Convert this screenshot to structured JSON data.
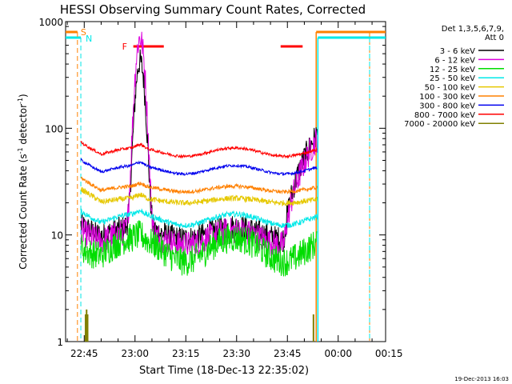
{
  "chart_data": {
    "type": "line",
    "title": "HESSI Observing Summary Count Rates, Corrected",
    "xlabel": "Start Time (18-Dec-13 22:35:02)",
    "ylabel_main": "Corrected Count Rate (s",
    "ylabel_sup1": "-1",
    "ylabel_mid": " detector",
    "ylabel_sup2": "-1",
    "ylabel_end": ")",
    "yscale": "log",
    "ylim": [
      1,
      1000
    ],
    "y_ticks": [
      {
        "value": 1,
        "label": "1"
      },
      {
        "value": 10,
        "label": "10"
      },
      {
        "value": 100,
        "label": "100"
      },
      {
        "value": 1000,
        "label": "1000"
      }
    ],
    "xlim_minutes": [
      -20.5,
      74
    ],
    "x_ticks": [
      {
        "value": -15,
        "label": "22:45"
      },
      {
        "value": 0,
        "label": "23:00"
      },
      {
        "value": 15,
        "label": "23:15"
      },
      {
        "value": 30,
        "label": "23:30"
      },
      {
        "value": 45,
        "label": "23:45"
      },
      {
        "value": 60,
        "label": "00:00"
      },
      {
        "value": 75,
        "label": "00:15"
      }
    ],
    "legend": {
      "header1": "Det 1,3,5,6,7,9,",
      "header2": "Att 0",
      "placement": "top-right outside"
    },
    "series": [
      {
        "name": "3 - 6 keV",
        "color": "#000000",
        "base": 10.5,
        "amp": 0.13,
        "noise": 0.28,
        "peak": 420
      },
      {
        "name": "6 - 12 keV",
        "color": "#dd00dd",
        "base": 9.5,
        "amp": 0.15,
        "noise": 0.3,
        "peak": 700
      },
      {
        "name": "12 - 25 keV",
        "color": "#00dd00",
        "base": 7.5,
        "amp": 0.25,
        "noise": 0.32,
        "peak": 12
      },
      {
        "name": "25 - 50 keV",
        "color": "#00e8e8",
        "base": 14,
        "amp": 0.12,
        "noise": 0.06,
        "peak": 22
      },
      {
        "name": "50 - 100 keV",
        "color": "#e6c800",
        "base": 21,
        "amp": 0.05,
        "noise": 0.06,
        "peak": 33
      },
      {
        "name": "100 - 300 keV",
        "color": "#ff8000",
        "base": 27,
        "amp": 0.06,
        "noise": 0.04,
        "peak": 40
      },
      {
        "name": "300 - 800 keV",
        "color": "#0000ee",
        "base": 41,
        "amp": 0.09,
        "noise": 0.03,
        "peak": 65
      },
      {
        "name": "800 - 7000 keV",
        "color": "#ff0000",
        "base": 60,
        "amp": 0.09,
        "noise": 0.03,
        "peak": 95
      },
      {
        "name": "7000 - 20000 keV",
        "color": "#808000",
        "base": 0,
        "amp": 0,
        "noise": 0,
        "peak": 0
      }
    ],
    "grid": false,
    "annotations": {
      "S_label": "S",
      "N_label": "N",
      "F_label": "F",
      "S_color": "#ff8000",
      "N_color": "#00e8e8",
      "F_color": "#ff0000",
      "flare_intervals_minutes": [
        [
          -0.5,
          8.5
        ],
        [
          43,
          49.5
        ]
      ],
      "saa_intervals_minutes": [
        [
          -20.5,
          -17
        ],
        [
          53.5,
          74
        ]
      ],
      "night_intervals_minutes": [
        [
          -20.5,
          -16
        ],
        [
          54,
          74
        ]
      ]
    }
  },
  "footer": {
    "timestamp": "19-Dec-2013 16:03"
  }
}
